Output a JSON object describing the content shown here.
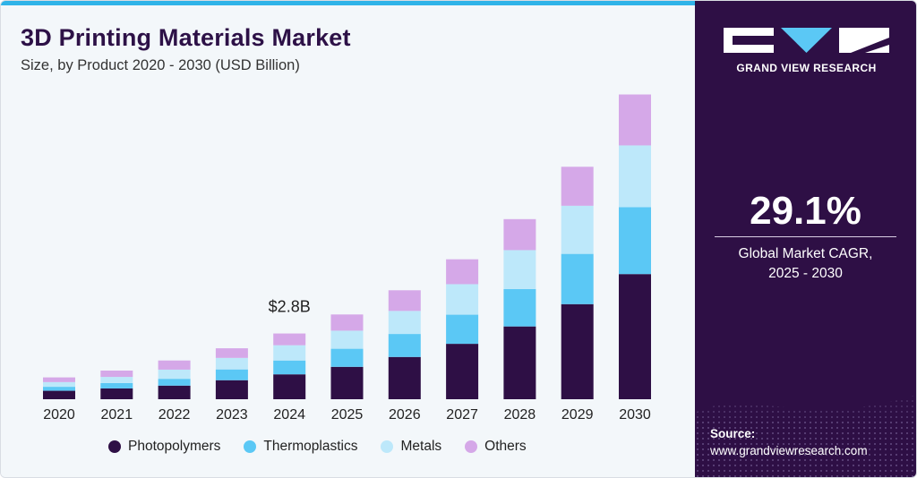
{
  "header": {
    "title": "3D Printing Materials Market",
    "subtitle": "Size, by Product 2020 - 2030 (USD Billion)"
  },
  "brand": {
    "name": "GRAND VIEW RESEARCH"
  },
  "cagr": {
    "value": "29.1%",
    "label_line1": "Global Market CAGR,",
    "label_line2": "2025 - 2030"
  },
  "source": {
    "title": "Source:",
    "url": "www.grandviewresearch.com"
  },
  "colors": {
    "Photopolymers": "#2e0f45",
    "Thermoplastics": "#5bc8f5",
    "Metals": "#bde8fa",
    "Others": "#d5a8e8"
  },
  "chart_data": {
    "type": "bar",
    "stacked": true,
    "categories": [
      "2020",
      "2021",
      "2022",
      "2023",
      "2024",
      "2025",
      "2026",
      "2027",
      "2028",
      "2029",
      "2030"
    ],
    "series": [
      {
        "name": "Photopolymers",
        "values": [
          0.36,
          0.46,
          0.58,
          0.81,
          1.06,
          1.38,
          1.8,
          2.36,
          3.1,
          4.05,
          5.33
        ]
      },
      {
        "name": "Thermoplastics",
        "values": [
          0.17,
          0.23,
          0.29,
          0.46,
          0.59,
          0.77,
          0.98,
          1.24,
          1.59,
          2.14,
          2.85
        ]
      },
      {
        "name": "Metals",
        "values": [
          0.2,
          0.26,
          0.39,
          0.49,
          0.65,
          0.77,
          0.98,
          1.3,
          1.66,
          2.05,
          2.63
        ]
      },
      {
        "name": "Others",
        "values": [
          0.2,
          0.27,
          0.39,
          0.41,
          0.5,
          0.69,
          0.88,
          1.06,
          1.32,
          1.66,
          2.17
        ]
      }
    ],
    "annotations": [
      {
        "category": "2024",
        "text": "$2.8B"
      }
    ],
    "ylim": [
      0,
      15
    ],
    "grid": false,
    "legend": "bottom"
  }
}
